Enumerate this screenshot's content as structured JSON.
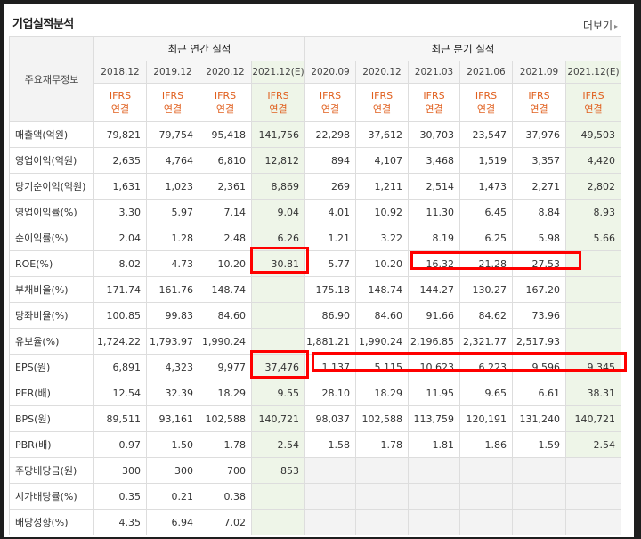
{
  "title": "기업실적분석",
  "more_label": "더보기",
  "more_arrow": "▸",
  "label_header": "주요재무정보",
  "annual_header": "최근 연간 실적",
  "quarterly_header": "최근 분기 실적",
  "periods": [
    "2018.12",
    "2019.12",
    "2020.12",
    "2021.12(E)",
    "2020.09",
    "2020.12",
    "2021.03",
    "2021.06",
    "2021.09",
    "2021.12(E)"
  ],
  "ifrs": {
    "top": "IFRS",
    "bottom": "연결"
  },
  "rows": [
    {
      "label": "매출액(억원)",
      "values": [
        "79,821",
        "79,754",
        "95,418",
        "141,756",
        "22,298",
        "37,612",
        "30,703",
        "23,547",
        "37,976",
        "49,503"
      ]
    },
    {
      "label": "영업이익(억원)",
      "values": [
        "2,635",
        "4,764",
        "6,810",
        "12,812",
        "894",
        "4,107",
        "3,468",
        "1,519",
        "3,357",
        "4,420"
      ]
    },
    {
      "label": "당기순이익(억원)",
      "values": [
        "1,631",
        "1,023",
        "2,361",
        "8,869",
        "269",
        "1,211",
        "2,514",
        "1,473",
        "2,271",
        "2,802"
      ]
    },
    {
      "label": "영업이익률(%)",
      "values": [
        "3.30",
        "5.97",
        "7.14",
        "9.04",
        "4.01",
        "10.92",
        "11.30",
        "6.45",
        "8.84",
        "8.93"
      ]
    },
    {
      "label": "순이익률(%)",
      "values": [
        "2.04",
        "1.28",
        "2.48",
        "6.26",
        "1.21",
        "3.22",
        "8.19",
        "6.25",
        "5.98",
        "5.66"
      ]
    },
    {
      "label": "ROE(%)",
      "values": [
        "8.02",
        "4.73",
        "10.20",
        "30.81",
        "5.77",
        "10.20",
        "16.32",
        "21.28",
        "27.53",
        ""
      ]
    },
    {
      "label": "부채비율(%)",
      "values": [
        "171.74",
        "161.76",
        "148.74",
        "",
        "175.18",
        "148.74",
        "144.27",
        "130.27",
        "167.20",
        ""
      ]
    },
    {
      "label": "당좌비율(%)",
      "values": [
        "100.85",
        "99.83",
        "84.60",
        "",
        "86.90",
        "84.60",
        "91.66",
        "84.62",
        "73.96",
        ""
      ]
    },
    {
      "label": "유보율(%)",
      "values": [
        "1,724.22",
        "1,793.97",
        "1,990.24",
        "",
        "1,881.21",
        "1,990.24",
        "2,196.85",
        "2,321.77",
        "2,517.93",
        ""
      ]
    },
    {
      "label": "EPS(원)",
      "values": [
        "6,891",
        "4,323",
        "9,977",
        "37,476",
        "1,137",
        "5,115",
        "10,623",
        "6,223",
        "9,596",
        "9,345"
      ]
    },
    {
      "label": "PER(배)",
      "values": [
        "12.54",
        "32.39",
        "18.29",
        "9.55",
        "28.10",
        "18.29",
        "11.95",
        "9.65",
        "6.61",
        "38.31"
      ]
    },
    {
      "label": "BPS(원)",
      "values": [
        "89,511",
        "93,161",
        "102,588",
        "140,721",
        "98,037",
        "102,588",
        "113,759",
        "120,191",
        "131,240",
        "140,721"
      ]
    },
    {
      "label": "PBR(배)",
      "values": [
        "0.97",
        "1.50",
        "1.78",
        "2.54",
        "1.58",
        "1.78",
        "1.81",
        "1.86",
        "1.59",
        "2.54"
      ]
    },
    {
      "label": "주당배당금(원)",
      "values": [
        "300",
        "300",
        "700",
        "853",
        "",
        "",
        "",
        "",
        "",
        ""
      ]
    },
    {
      "label": "시가배당률(%)",
      "values": [
        "0.35",
        "0.21",
        "0.38",
        "",
        "",
        "",
        "",
        "",
        "",
        ""
      ]
    },
    {
      "label": "배당성향(%)",
      "values": [
        "4.35",
        "6.94",
        "7.02",
        "",
        "",
        "",
        "",
        "",
        "",
        ""
      ]
    }
  ],
  "colors": {
    "highlight": "#ff0000",
    "estimate_bg": "#eef5e8",
    "ifrs_text": "#e0601f"
  }
}
